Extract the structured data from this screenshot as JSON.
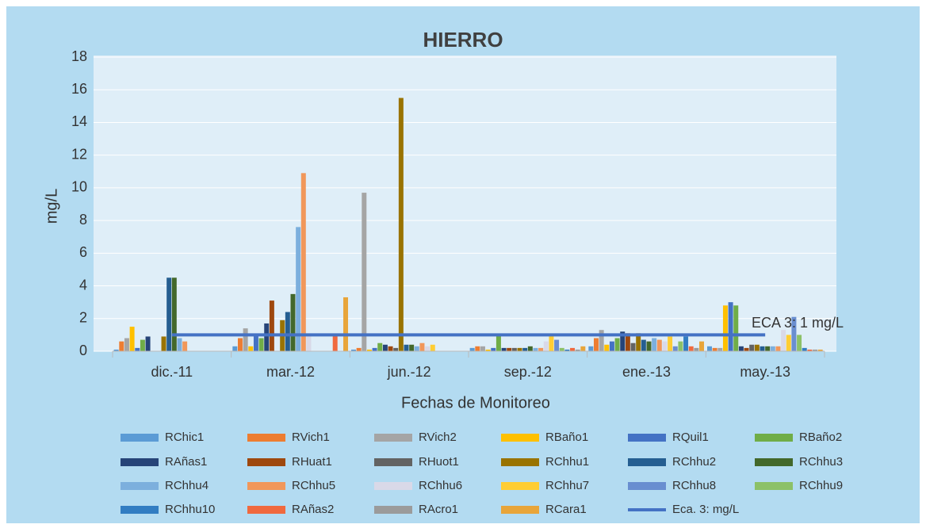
{
  "chart_data": {
    "type": "bar",
    "title": "HIERRO",
    "y_label": "mg/L",
    "x_label": "Fechas de Monitoreo",
    "annotation": "ECA 3: 1 mg/L",
    "categories": [
      "dic.-11",
      "mar.-12",
      "jun.-12",
      "sep.-12",
      "ene.-13",
      "may.-13"
    ],
    "ylim": [
      0,
      18
    ],
    "yticks": [
      0,
      2,
      4,
      6,
      8,
      10,
      12,
      14,
      16,
      18
    ],
    "grid": true,
    "series": [
      {
        "name": "RChic1",
        "color": "#5b9bd5",
        "values": [
          0.1,
          0.3,
          0.1,
          0.2,
          0.3,
          0.3
        ]
      },
      {
        "name": "RVich1",
        "color": "#ed7d31",
        "values": [
          0.6,
          0.8,
          0.2,
          0.3,
          0.8,
          0.2
        ]
      },
      {
        "name": "RVich2",
        "color": "#a5a5a5",
        "values": [
          0.8,
          1.4,
          9.7,
          0.3,
          1.3,
          0.2
        ]
      },
      {
        "name": "RBaño1",
        "color": "#ffc000",
        "values": [
          1.5,
          0.3,
          0.1,
          0.1,
          0.4,
          2.8
        ]
      },
      {
        "name": "RQuil1",
        "color": "#4472c4",
        "values": [
          0.2,
          1.0,
          0.2,
          0.2,
          0.6,
          3.0
        ]
      },
      {
        "name": "RBaño2",
        "color": "#70ad47",
        "values": [
          0.7,
          0.8,
          0.5,
          1.0,
          0.8,
          2.8
        ]
      },
      {
        "name": "RAñas1",
        "color": "#264478",
        "values": [
          0.9,
          1.7,
          0.4,
          0.2,
          1.2,
          0.3
        ]
      },
      {
        "name": "RHuat1",
        "color": "#9e480e",
        "values": [
          0,
          3.1,
          0.3,
          0.2,
          1.1,
          0.2
        ]
      },
      {
        "name": "RHuot1",
        "color": "#636363",
        "values": [
          0,
          0,
          0.2,
          0.2,
          0.5,
          0.4
        ]
      },
      {
        "name": "RChhu1",
        "color": "#997300",
        "values": [
          0.9,
          1.9,
          15.5,
          0.2,
          1.1,
          0.4
        ]
      },
      {
        "name": "RChhu2",
        "color": "#255e91",
        "values": [
          4.5,
          2.4,
          0.4,
          0.2,
          0.7,
          0.3
        ]
      },
      {
        "name": "RChhu3",
        "color": "#43682b",
        "values": [
          4.5,
          3.5,
          0.4,
          0.3,
          0.6,
          0.3
        ]
      },
      {
        "name": "RChhu4",
        "color": "#7cafdd",
        "values": [
          0.8,
          7.6,
          0.3,
          0.2,
          0.8,
          0.3
        ]
      },
      {
        "name": "RChhu5",
        "color": "#f1975a",
        "values": [
          0.6,
          10.9,
          0.5,
          0.2,
          0.7,
          0.3
        ]
      },
      {
        "name": "RChhu6",
        "color": "#d9d9e8",
        "values": [
          0,
          1.0,
          0.3,
          0.6,
          0.6,
          1.3
        ]
      },
      {
        "name": "RChhu7",
        "color": "#ffcd33",
        "values": [
          0,
          0,
          0.4,
          1.0,
          0.9,
          1.0
        ]
      },
      {
        "name": "RChhu8",
        "color": "#698ed0",
        "values": [
          0,
          0,
          0,
          0.7,
          0.3,
          2.1
        ]
      },
      {
        "name": "RChhu9",
        "color": "#8cc168",
        "values": [
          0,
          0,
          0,
          0.2,
          0.6,
          1.0
        ]
      },
      {
        "name": "RChhu10",
        "color": "#327dc2",
        "values": [
          0,
          0,
          0,
          0.1,
          0.9,
          0.2
        ]
      },
      {
        "name": "RAñas2",
        "color": "#f0693e",
        "values": [
          0,
          1.0,
          0,
          0.2,
          0.3,
          0.1
        ]
      },
      {
        "name": "RAcro1",
        "color": "#9b9b9b",
        "values": [
          0,
          0,
          0,
          0.1,
          0.2,
          0.1
        ]
      },
      {
        "name": "RCara1",
        "color": "#e8a53a",
        "values": [
          0,
          3.3,
          0,
          0.3,
          0.6,
          0.1
        ]
      },
      {
        "name": "Eca. 3: mg/L",
        "color": "#4472c4",
        "type": "line",
        "values": [
          1,
          1,
          1,
          1,
          1,
          1
        ]
      }
    ]
  }
}
